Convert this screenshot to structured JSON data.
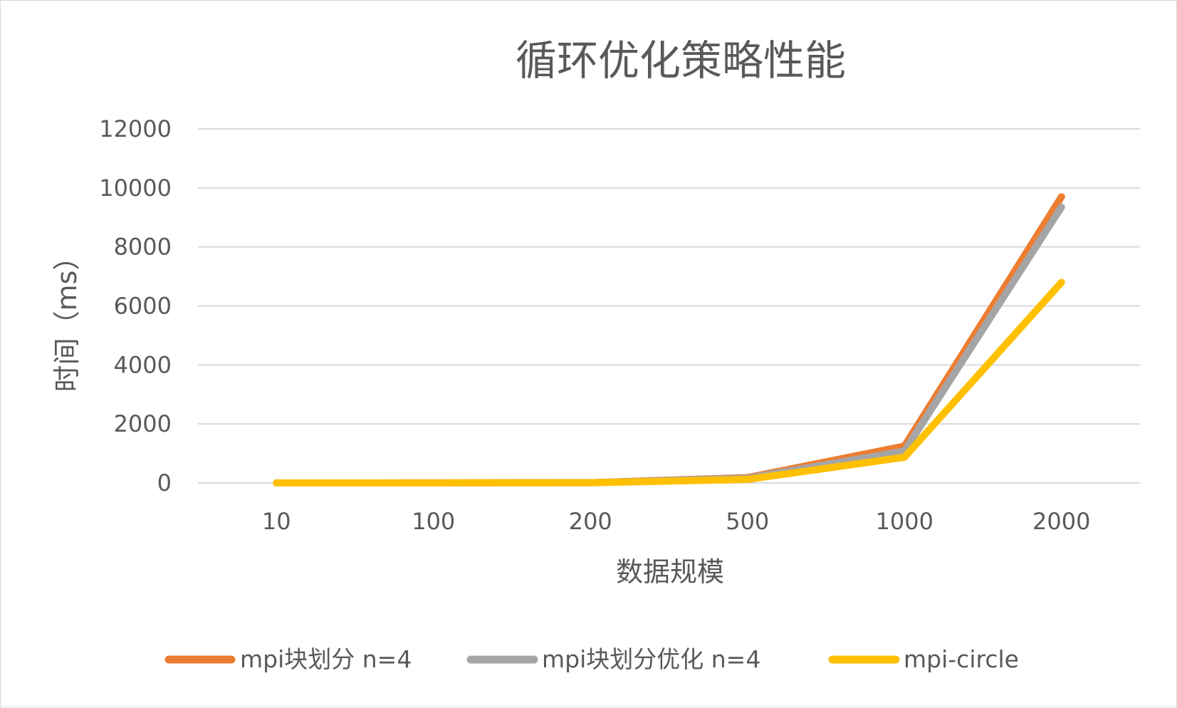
{
  "chart_data": {
    "type": "line",
    "title": "循环优化策略性能",
    "xlabel": "数据规模",
    "ylabel": "时间（ms）",
    "categories": [
      "10",
      "100",
      "200",
      "500",
      "1000",
      "2000"
    ],
    "ylim": [
      0,
      12000
    ],
    "yticks": [
      0,
      2000,
      4000,
      6000,
      8000,
      10000,
      12000
    ],
    "grid": true,
    "legend_position": "bottom",
    "series": [
      {
        "name": "mpi块划分 n=4",
        "color": "#ed7d31",
        "values": [
          0,
          2,
          10,
          180,
          1250,
          9700
        ]
      },
      {
        "name": "mpi块划分优化 n=4",
        "color": "#a5a5a5",
        "values": [
          0,
          2,
          9,
          160,
          1080,
          9350
        ]
      },
      {
        "name": "mpi-circle",
        "color": "#ffc000",
        "values": [
          0,
          1,
          6,
          120,
          870,
          6800
        ]
      }
    ]
  }
}
